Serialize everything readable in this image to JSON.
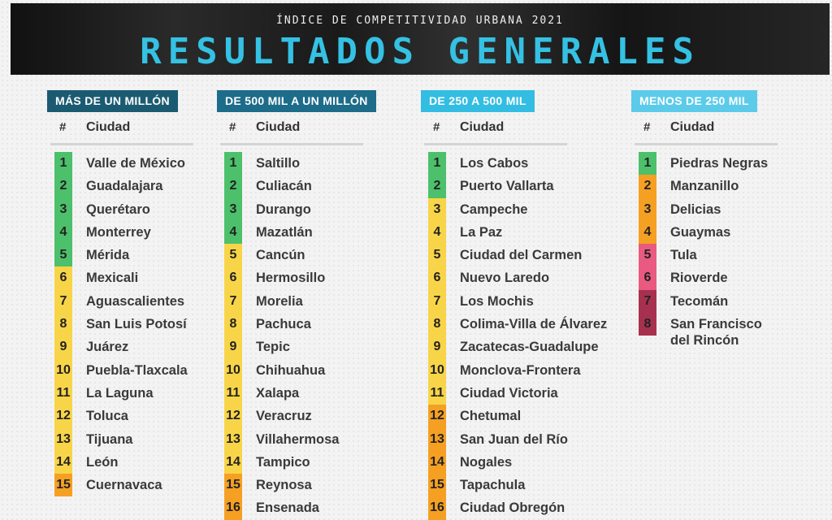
{
  "header": {
    "subtitle": "ÍNDICE DE COMPETITIVIDAD URBANA 2021",
    "title": "RESULTADOS GENERALES"
  },
  "colors": {
    "green": "#4cc06b",
    "yellow": "#f8d548",
    "orange": "#f5a023",
    "pink": "#ea5a80",
    "maroon": "#a8304f"
  },
  "columns": [
    {
      "category": "MÁS DE UN MILLÓN",
      "category_color": "#1b5b72",
      "hash_label": "#",
      "city_label": "Ciudad",
      "rows": [
        {
          "rank": "1",
          "city": "Valle de México",
          "color": "green"
        },
        {
          "rank": "2",
          "city": "Guadalajara",
          "color": "green"
        },
        {
          "rank": "3",
          "city": "Querétaro",
          "color": "green"
        },
        {
          "rank": "4",
          "city": "Monterrey",
          "color": "green"
        },
        {
          "rank": "5",
          "city": "Mérida",
          "color": "green"
        },
        {
          "rank": "6",
          "city": "Mexicali",
          "color": "yellow"
        },
        {
          "rank": "7",
          "city": "Aguascalientes",
          "color": "yellow"
        },
        {
          "rank": "8",
          "city": "San Luis Potosí",
          "color": "yellow"
        },
        {
          "rank": "9",
          "city": "Juárez",
          "color": "yellow"
        },
        {
          "rank": "10",
          "city": "Puebla-Tlaxcala",
          "color": "yellow"
        },
        {
          "rank": "11",
          "city": "La Laguna",
          "color": "yellow"
        },
        {
          "rank": "12",
          "city": "Toluca",
          "color": "yellow"
        },
        {
          "rank": "13",
          "city": "Tijuana",
          "color": "yellow"
        },
        {
          "rank": "14",
          "city": "León",
          "color": "yellow"
        },
        {
          "rank": "15",
          "city": "Cuernavaca",
          "color": "orange"
        }
      ]
    },
    {
      "category": "DE 500 MIL A UN MILLÓN",
      "category_color": "#1d6c8a",
      "hash_label": "#",
      "city_label": "Ciudad",
      "rows": [
        {
          "rank": "1",
          "city": "Saltillo",
          "color": "green"
        },
        {
          "rank": "2",
          "city": "Culiacán",
          "color": "green"
        },
        {
          "rank": "3",
          "city": "Durango",
          "color": "green"
        },
        {
          "rank": "4",
          "city": "Mazatlán",
          "color": "green"
        },
        {
          "rank": "5",
          "city": "Cancún",
          "color": "yellow"
        },
        {
          "rank": "6",
          "city": "Hermosillo",
          "color": "yellow"
        },
        {
          "rank": "7",
          "city": "Morelia",
          "color": "yellow"
        },
        {
          "rank": "8",
          "city": "Pachuca",
          "color": "yellow"
        },
        {
          "rank": "9",
          "city": "Tepic",
          "color": "yellow"
        },
        {
          "rank": "10",
          "city": "Chihuahua",
          "color": "yellow"
        },
        {
          "rank": "11",
          "city": "Xalapa",
          "color": "yellow"
        },
        {
          "rank": "12",
          "city": "Veracruz",
          "color": "yellow"
        },
        {
          "rank": "13",
          "city": "Villahermosa",
          "color": "yellow"
        },
        {
          "rank": "14",
          "city": "Tampico",
          "color": "yellow"
        },
        {
          "rank": "15",
          "city": "Reynosa",
          "color": "orange"
        },
        {
          "rank": "16",
          "city": "Ensenada",
          "color": "orange"
        }
      ]
    },
    {
      "category": "DE 250 A 500 MIL",
      "category_color": "#33bde2",
      "hash_label": "#",
      "city_label": "Ciudad",
      "rows": [
        {
          "rank": "1",
          "city": "Los Cabos",
          "color": "green"
        },
        {
          "rank": "2",
          "city": "Puerto Vallarta",
          "color": "green"
        },
        {
          "rank": "3",
          "city": "Campeche",
          "color": "yellow"
        },
        {
          "rank": "4",
          "city": "La Paz",
          "color": "yellow"
        },
        {
          "rank": "5",
          "city": "Ciudad del Carmen",
          "color": "yellow"
        },
        {
          "rank": "6",
          "city": "Nuevo Laredo",
          "color": "yellow"
        },
        {
          "rank": "7",
          "city": "Los Mochis",
          "color": "yellow"
        },
        {
          "rank": "8",
          "city": "Colima-Villa de Álvarez",
          "color": "yellow"
        },
        {
          "rank": "9",
          "city": "Zacatecas-Guadalupe",
          "color": "yellow"
        },
        {
          "rank": "10",
          "city": "Monclova-Frontera",
          "color": "yellow"
        },
        {
          "rank": "11",
          "city": "Ciudad Victoria",
          "color": "yellow"
        },
        {
          "rank": "12",
          "city": "Chetumal",
          "color": "orange"
        },
        {
          "rank": "13",
          "city": "San Juan del Río",
          "color": "orange"
        },
        {
          "rank": "14",
          "city": "Nogales",
          "color": "orange"
        },
        {
          "rank": "15",
          "city": "Tapachula",
          "color": "orange"
        },
        {
          "rank": "16",
          "city": "Ciudad Obregón",
          "color": "orange"
        }
      ]
    },
    {
      "category": "MENOS DE 250 MIL",
      "category_color": "#5ccbea",
      "hash_label": "#",
      "city_label": "Ciudad",
      "rows": [
        {
          "rank": "1",
          "city": "Piedras Negras",
          "color": "green"
        },
        {
          "rank": "2",
          "city": "Manzanillo",
          "color": "orange"
        },
        {
          "rank": "3",
          "city": "Delicias",
          "color": "orange"
        },
        {
          "rank": "4",
          "city": "Guaymas",
          "color": "orange"
        },
        {
          "rank": "5",
          "city": "Tula",
          "color": "pink"
        },
        {
          "rank": "6",
          "city": "Rioverde",
          "color": "pink"
        },
        {
          "rank": "7",
          "city": "Tecomán",
          "color": "maroon"
        },
        {
          "rank": "8",
          "city": "San Francisco del Rincón",
          "color": "maroon"
        }
      ]
    }
  ]
}
